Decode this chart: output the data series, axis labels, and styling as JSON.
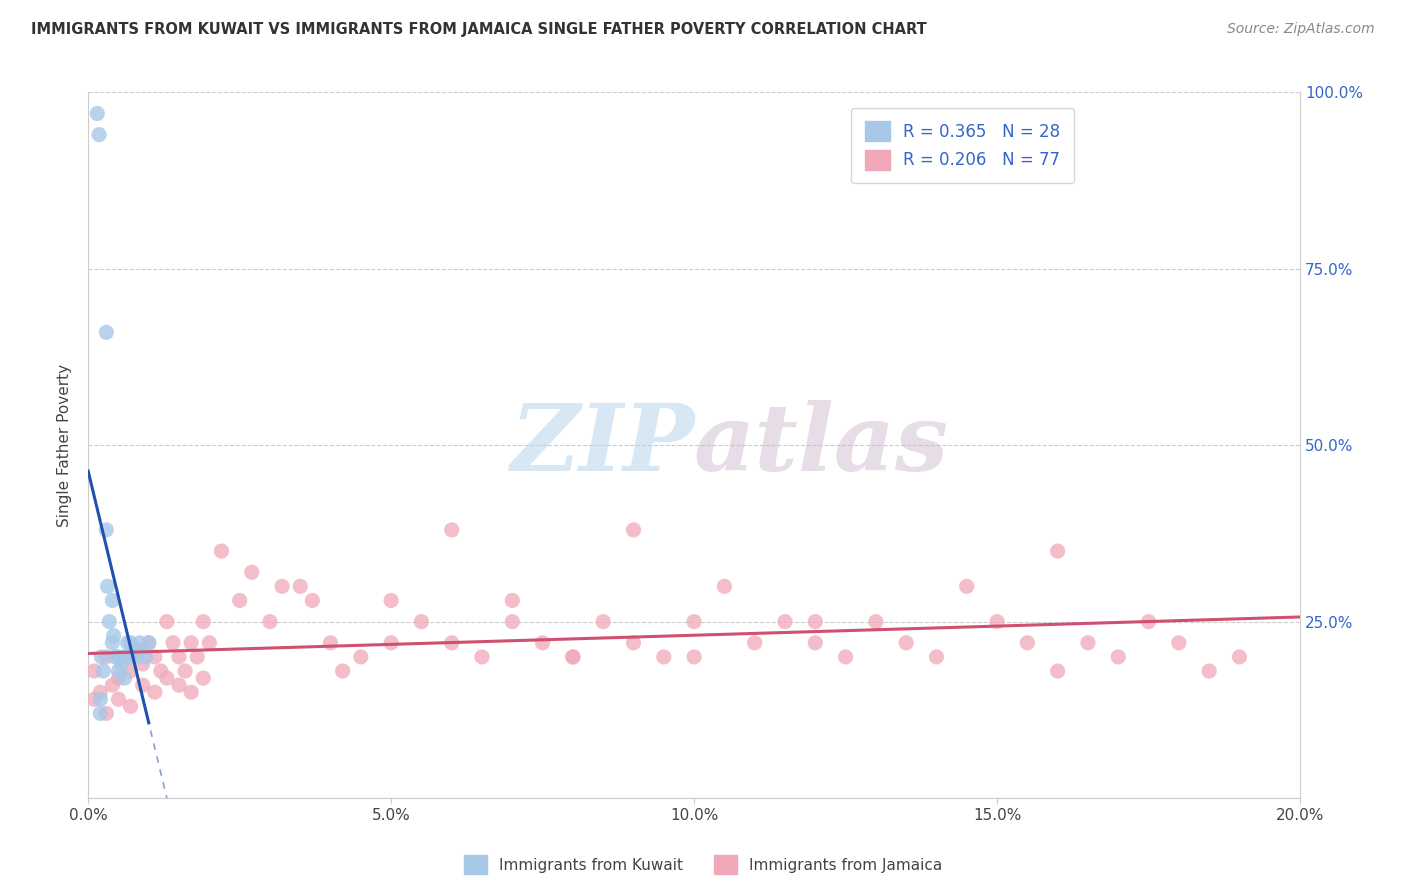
{
  "title": "IMMIGRANTS FROM KUWAIT VS IMMIGRANTS FROM JAMAICA SINGLE FATHER POVERTY CORRELATION CHART",
  "source": "Source: ZipAtlas.com",
  "ylabel": "Single Father Poverty",
  "legend_label1": "Immigrants from Kuwait",
  "legend_label2": "Immigrants from Jamaica",
  "R1": 0.365,
  "N1": 28,
  "R2": 0.206,
  "N2": 77,
  "color1": "#a8c8e8",
  "color2": "#f0a8b8",
  "line_color1": "#2050b0",
  "line_color2": "#d05070",
  "xlim": [
    0.0,
    0.2
  ],
  "ylim": [
    0.0,
    1.0
  ],
  "xticks": [
    0.0,
    0.05,
    0.1,
    0.15,
    0.2
  ],
  "xticklabels": [
    "0.0%",
    "5.0%",
    "10.0%",
    "15.0%",
    "20.0%"
  ],
  "yticks": [
    0.0,
    0.25,
    0.5,
    0.75,
    1.0
  ],
  "ytick_right_labels": [
    "",
    "25.0%",
    "50.0%",
    "75.0%",
    "100.0%"
  ],
  "watermark_zip": "ZIP",
  "watermark_atlas": "atlas",
  "kuwait_x": [
    0.0015,
    0.0018,
    0.002,
    0.002,
    0.0022,
    0.0025,
    0.003,
    0.003,
    0.0032,
    0.0035,
    0.004,
    0.004,
    0.0042,
    0.0045,
    0.005,
    0.005,
    0.0055,
    0.006,
    0.006,
    0.0065,
    0.007,
    0.007,
    0.0075,
    0.008,
    0.0085,
    0.009,
    0.0095,
    0.01
  ],
  "kuwait_y": [
    0.97,
    0.94,
    0.14,
    0.12,
    0.2,
    0.18,
    0.66,
    0.38,
    0.3,
    0.25,
    0.28,
    0.22,
    0.23,
    0.2,
    0.2,
    0.18,
    0.19,
    0.17,
    0.2,
    0.22,
    0.2,
    0.22,
    0.21,
    0.2,
    0.22,
    0.21,
    0.2,
    0.22
  ],
  "jamaica_x": [
    0.001,
    0.002,
    0.003,
    0.004,
    0.005,
    0.006,
    0.007,
    0.008,
    0.009,
    0.01,
    0.011,
    0.012,
    0.013,
    0.014,
    0.015,
    0.016,
    0.017,
    0.018,
    0.019,
    0.02,
    0.025,
    0.03,
    0.035,
    0.04,
    0.045,
    0.05,
    0.055,
    0.06,
    0.065,
    0.07,
    0.075,
    0.08,
    0.085,
    0.09,
    0.095,
    0.1,
    0.105,
    0.11,
    0.115,
    0.12,
    0.125,
    0.13,
    0.135,
    0.14,
    0.145,
    0.15,
    0.155,
    0.16,
    0.165,
    0.17,
    0.175,
    0.18,
    0.185,
    0.19,
    0.001,
    0.003,
    0.005,
    0.007,
    0.009,
    0.011,
    0.013,
    0.015,
    0.017,
    0.019,
    0.022,
    0.027,
    0.032,
    0.037,
    0.042,
    0.05,
    0.06,
    0.07,
    0.08,
    0.09,
    0.1,
    0.12,
    0.16
  ],
  "jamaica_y": [
    0.18,
    0.15,
    0.2,
    0.16,
    0.17,
    0.2,
    0.18,
    0.21,
    0.19,
    0.22,
    0.2,
    0.18,
    0.25,
    0.22,
    0.2,
    0.18,
    0.22,
    0.2,
    0.25,
    0.22,
    0.28,
    0.25,
    0.3,
    0.22,
    0.2,
    0.28,
    0.25,
    0.22,
    0.2,
    0.28,
    0.22,
    0.2,
    0.25,
    0.22,
    0.2,
    0.25,
    0.3,
    0.22,
    0.25,
    0.22,
    0.2,
    0.25,
    0.22,
    0.2,
    0.3,
    0.25,
    0.22,
    0.18,
    0.22,
    0.2,
    0.25,
    0.22,
    0.18,
    0.2,
    0.14,
    0.12,
    0.14,
    0.13,
    0.16,
    0.15,
    0.17,
    0.16,
    0.15,
    0.17,
    0.35,
    0.32,
    0.3,
    0.28,
    0.18,
    0.22,
    0.38,
    0.25,
    0.2,
    0.38,
    0.2,
    0.25,
    0.35
  ]
}
